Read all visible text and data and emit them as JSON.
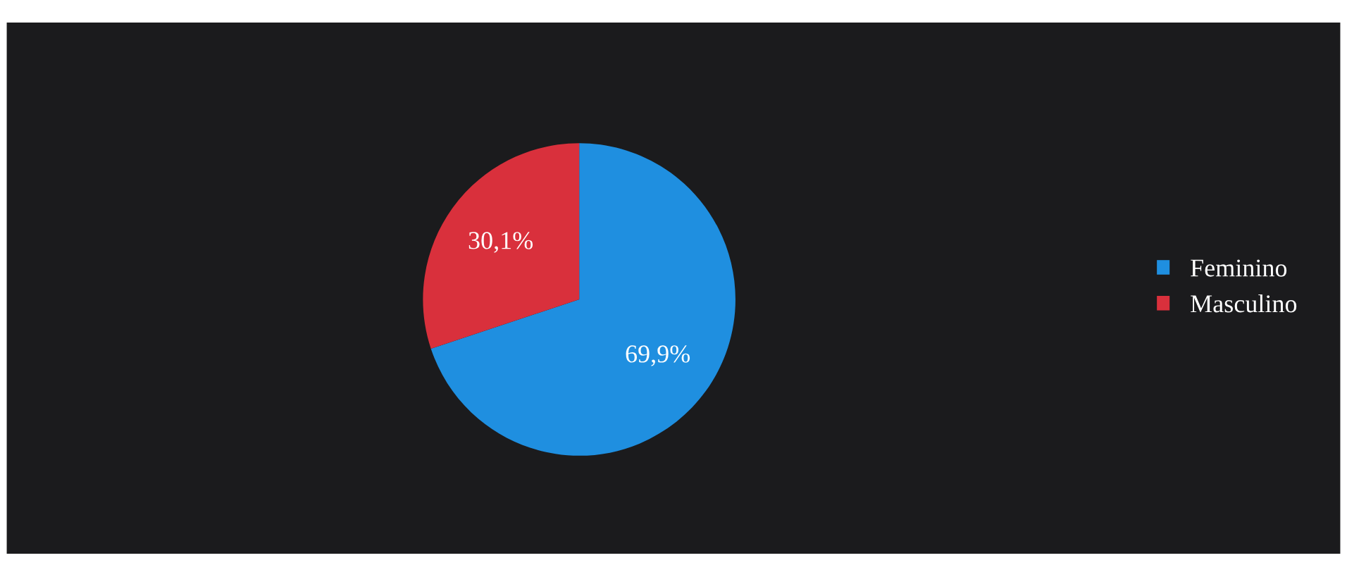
{
  "chart_data": {
    "type": "pie",
    "categories": [
      "Feminino",
      "Masculino"
    ],
    "values": [
      69.9,
      30.1
    ],
    "colors": [
      "#1f8fe0",
      "#d9303c"
    ],
    "value_labels": [
      "69,9%",
      "30,1%"
    ],
    "legend": "right"
  }
}
